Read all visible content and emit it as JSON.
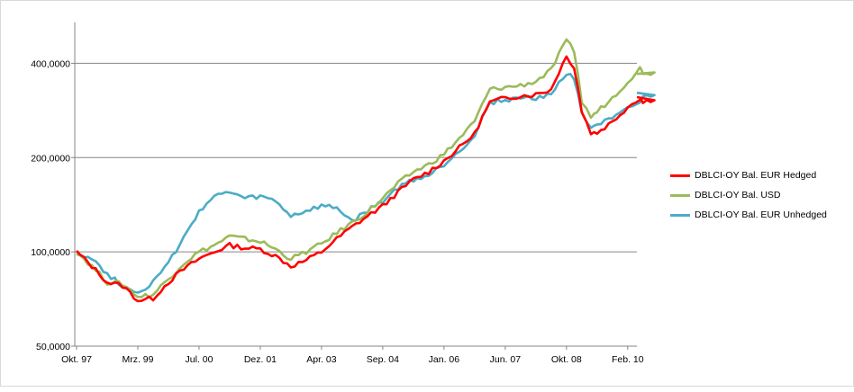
{
  "chart_data": {
    "type": "line",
    "title": "",
    "xlabel": "",
    "ylabel": "",
    "y_scale": "log",
    "ylim": [
      50,
      540
    ],
    "y_ticks": [
      {
        "value": 50,
        "label": "50,0000"
      },
      {
        "value": 100,
        "label": "100,0000"
      },
      {
        "value": 200,
        "label": "200,0000"
      },
      {
        "value": 400,
        "label": "400,0000"
      }
    ],
    "x_ticks": [
      "Okt. 97",
      "Mrz. 99",
      "Jul. 00",
      "Dez. 01",
      "Apr. 03",
      "Sep. 04",
      "Jan. 06",
      "Jun. 07",
      "Okt. 08",
      "Feb. 10"
    ],
    "x": [
      "Okt. 97",
      "Mrz. 99",
      "Jul. 00",
      "Dez. 01",
      "Apr. 03",
      "Sep. 04",
      "Jan. 06",
      "Jun. 07",
      "Okt. 08",
      "Feb. 10"
    ],
    "grid": true,
    "legend_position": "right",
    "series": [
      {
        "name": "DBLCI-OY Bal. EUR Hedged",
        "color": "#ff0000",
        "anchor_values": [
          [
            0,
            100
          ],
          [
            1,
            90
          ],
          [
            2,
            80
          ],
          [
            3,
            78
          ],
          [
            4,
            70
          ],
          [
            5,
            71
          ],
          [
            6,
            80
          ],
          [
            7,
            88
          ],
          [
            8,
            95
          ],
          [
            9,
            100
          ],
          [
            10,
            105
          ],
          [
            11,
            103
          ],
          [
            12,
            102
          ],
          [
            13,
            97
          ],
          [
            14,
            90
          ],
          [
            15,
            94
          ],
          [
            16,
            100
          ],
          [
            17,
            110
          ],
          [
            18,
            120
          ],
          [
            19,
            130
          ],
          [
            20,
            140
          ],
          [
            21,
            155
          ],
          [
            22,
            170
          ],
          [
            23,
            180
          ],
          [
            24,
            195
          ],
          [
            25,
            215
          ],
          [
            26,
            238
          ],
          [
            27,
            300
          ],
          [
            28,
            310
          ],
          [
            29,
            315
          ],
          [
            30,
            318
          ],
          [
            31,
            330
          ],
          [
            32,
            420
          ],
          [
            32.5,
            390
          ],
          [
            33,
            280
          ],
          [
            33.6,
            240
          ],
          [
            34,
            240
          ],
          [
            35,
            260
          ],
          [
            36,
            290
          ],
          [
            36.8,
            310
          ],
          [
            37,
            300
          ],
          [
            38,
            312
          ]
        ]
      },
      {
        "name": "DBLCI-OY Bal. USD",
        "color": "#9bbb59",
        "anchor_values": [
          [
            0,
            100
          ],
          [
            1,
            90
          ],
          [
            2,
            80
          ],
          [
            3,
            79
          ],
          [
            4,
            72
          ],
          [
            5,
            73
          ],
          [
            6,
            82
          ],
          [
            7,
            92
          ],
          [
            8,
            100
          ],
          [
            9,
            105
          ],
          [
            10,
            112
          ],
          [
            11,
            110
          ],
          [
            12,
            108
          ],
          [
            13,
            102
          ],
          [
            14,
            95
          ],
          [
            15,
            100
          ],
          [
            16,
            106
          ],
          [
            17,
            115
          ],
          [
            18,
            124
          ],
          [
            19,
            134
          ],
          [
            20,
            148
          ],
          [
            21,
            165
          ],
          [
            22,
            180
          ],
          [
            23,
            190
          ],
          [
            24,
            205
          ],
          [
            25,
            230
          ],
          [
            26,
            260
          ],
          [
            27,
            330
          ],
          [
            28,
            335
          ],
          [
            29,
            340
          ],
          [
            30,
            350
          ],
          [
            31,
            380
          ],
          [
            32,
            470
          ],
          [
            32.5,
            440
          ],
          [
            33,
            300
          ],
          [
            33.6,
            270
          ],
          [
            34,
            280
          ],
          [
            35,
            310
          ],
          [
            36,
            350
          ],
          [
            36.8,
            385
          ],
          [
            37,
            375
          ],
          [
            38,
            370
          ]
        ]
      },
      {
        "name": "DBLCI-OY Bal. EUR Unhedged",
        "color": "#4bacc6",
        "anchor_values": [
          [
            0,
            100
          ],
          [
            1,
            95
          ],
          [
            2,
            85
          ],
          [
            3,
            78
          ],
          [
            4,
            74
          ],
          [
            5,
            80
          ],
          [
            6,
            92
          ],
          [
            7,
            110
          ],
          [
            8,
            135
          ],
          [
            9,
            150
          ],
          [
            10,
            155
          ],
          [
            11,
            148
          ],
          [
            12,
            150
          ],
          [
            13,
            145
          ],
          [
            14,
            130
          ],
          [
            15,
            135
          ],
          [
            16,
            140
          ],
          [
            17,
            138
          ],
          [
            18,
            125
          ],
          [
            19,
            135
          ],
          [
            20,
            145
          ],
          [
            21,
            160
          ],
          [
            22,
            170
          ],
          [
            23,
            175
          ],
          [
            24,
            190
          ],
          [
            25,
            210
          ],
          [
            26,
            235
          ],
          [
            27,
            300
          ],
          [
            28,
            305
          ],
          [
            29,
            310
          ],
          [
            30,
            310
          ],
          [
            31,
            320
          ],
          [
            32,
            370
          ],
          [
            32.5,
            360
          ],
          [
            33,
            280
          ],
          [
            33.6,
            250
          ],
          [
            34,
            255
          ],
          [
            35,
            265
          ],
          [
            36,
            285
          ],
          [
            36.8,
            300
          ],
          [
            37,
            310
          ],
          [
            38,
            322
          ]
        ]
      }
    ]
  }
}
